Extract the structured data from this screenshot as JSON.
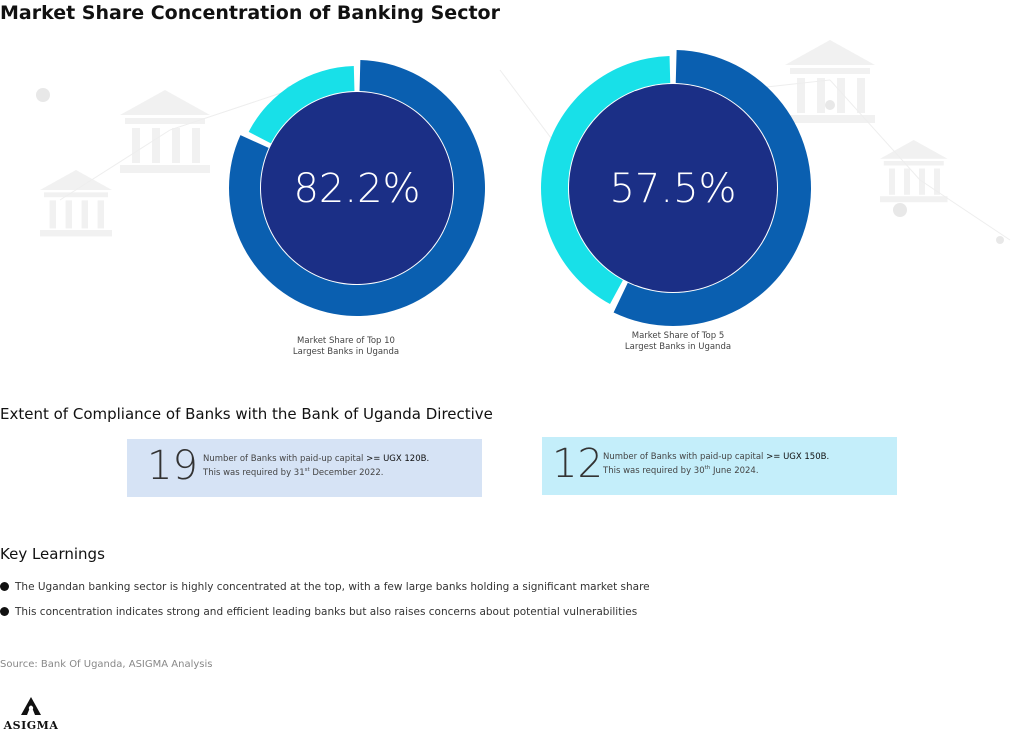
{
  "title": "Market Share Concentration of Banking Sector",
  "colors": {
    "outer_ring": "#0a5fb0",
    "inner_fill": "#1b2f86",
    "highlight": "#18e0e8",
    "card_left": "#d6e3f5",
    "card_right": "#c4eefa"
  },
  "chart_data": [
    {
      "type": "pie",
      "variant": "donut",
      "value_label": "82.2%",
      "value": 82.2,
      "caption_line1": "Market Share of Top 10",
      "caption_line2": "Largest Banks in Uganda"
    },
    {
      "type": "pie",
      "variant": "donut",
      "value_label": "57.5%",
      "value": 57.5,
      "caption_line1": "Market Share of Top 5",
      "caption_line2": "Largest Banks in Uganda"
    }
  ],
  "compliance": {
    "heading": "Extent of Compliance of Banks with the Bank of Uganda Directive",
    "cards": [
      {
        "number": "19",
        "line1_prefix": "Number of Banks with paid-up capital ",
        "line1_bold": ">= UGX 120B.",
        "line2_prefix": "This was required by 31",
        "line2_sup": "st",
        "line2_suffix": " December 2022."
      },
      {
        "number": "12",
        "line1_prefix": "Number of Banks with paid-up capital ",
        "line1_bold": ">= UGX 150B.",
        "line2_prefix": "This was required by 30",
        "line2_sup": "th",
        "line2_suffix": " June 2024."
      }
    ]
  },
  "learnings": {
    "heading": "Key Learnings",
    "items": [
      "The Ugandan banking sector is highly concentrated at the top, with a few large banks holding a significant market share",
      "This concentration indicates strong and efficient leading banks but also raises concerns about potential vulnerabilities"
    ]
  },
  "source": "Source: Bank Of Uganda, ASIGMA Analysis",
  "logo": {
    "word": "ASIGMA",
    "icon": "asigma-logo-icon"
  }
}
